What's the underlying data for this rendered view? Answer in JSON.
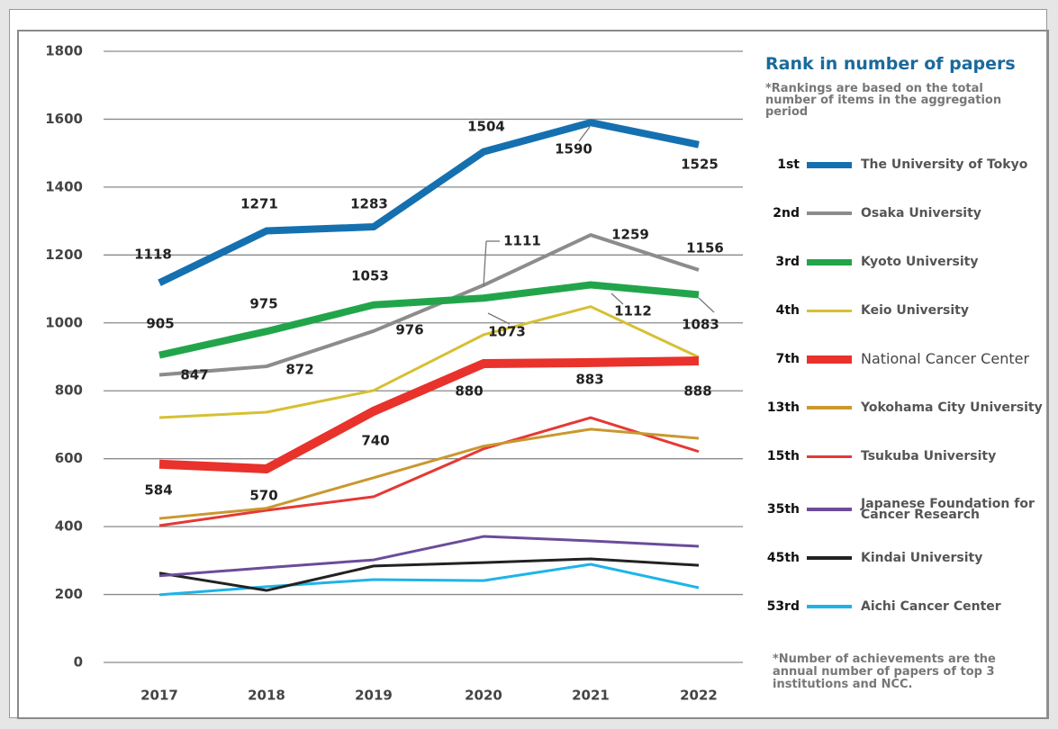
{
  "chart_data": {
    "type": "line",
    "legend_title": "Rank in number of papers",
    "legend_note": "*Rankings are based on the total number of items in the aggregation period",
    "footnote": "*Number of achievements are the annual number of papers of top 3 institutions and NCC.",
    "categories": [
      "2017",
      "2018",
      "2019",
      "2020",
      "2021",
      "2022"
    ],
    "ylim": [
      0,
      1800
    ],
    "yticks": [
      0,
      200,
      400,
      600,
      800,
      1000,
      1200,
      1400,
      1600,
      1800
    ],
    "grid": true,
    "series": [
      {
        "name": "The University of Tokyo",
        "rank": "1st",
        "color": "#1570b0",
        "values": [
          1118,
          1271,
          1283,
          1504,
          1590,
          1525
        ]
      },
      {
        "name": "Osaka University",
        "rank": "2nd",
        "color": "#8c8c8c",
        "values": [
          847,
          872,
          976,
          1111,
          1259,
          1156
        ]
      },
      {
        "name": "Kyoto University",
        "rank": "3rd",
        "color": "#22a54a",
        "values": [
          905,
          975,
          1053,
          1073,
          1112,
          1083
        ]
      },
      {
        "name": "Keio University",
        "rank": "4th",
        "color": "#d6c033",
        "values": [
          721,
          737,
          801,
          965,
          1048,
          899
        ]
      },
      {
        "name": "National Cancer Center",
        "rank": "7th",
        "color": "#e8322b",
        "values": [
          584,
          570,
          740,
          880,
          883,
          888
        ]
      },
      {
        "name": "Yokohama City University",
        "rank": "13th",
        "color": "#c9982f",
        "values": [
          424,
          454,
          544,
          637,
          687,
          660
        ]
      },
      {
        "name": "Tsukuba University",
        "rank": "15th",
        "color": "#e53935",
        "values": [
          403,
          448,
          488,
          629,
          721,
          621
        ]
      },
      {
        "name": "Japanese Foundation for Cancer Research",
        "rank": "35th",
        "color": "#6b4c9a",
        "values": [
          255,
          279,
          302,
          371,
          358,
          342
        ]
      },
      {
        "name": "Kindai University",
        "rank": "45th",
        "color": "#222222",
        "values": [
          263,
          212,
          284,
          294,
          305,
          286
        ]
      },
      {
        "name": "Aichi Cancer Center",
        "rank": "53rd",
        "color": "#1eb4e8",
        "values": [
          199,
          223,
          244,
          241,
          289,
          220
        ]
      }
    ]
  }
}
